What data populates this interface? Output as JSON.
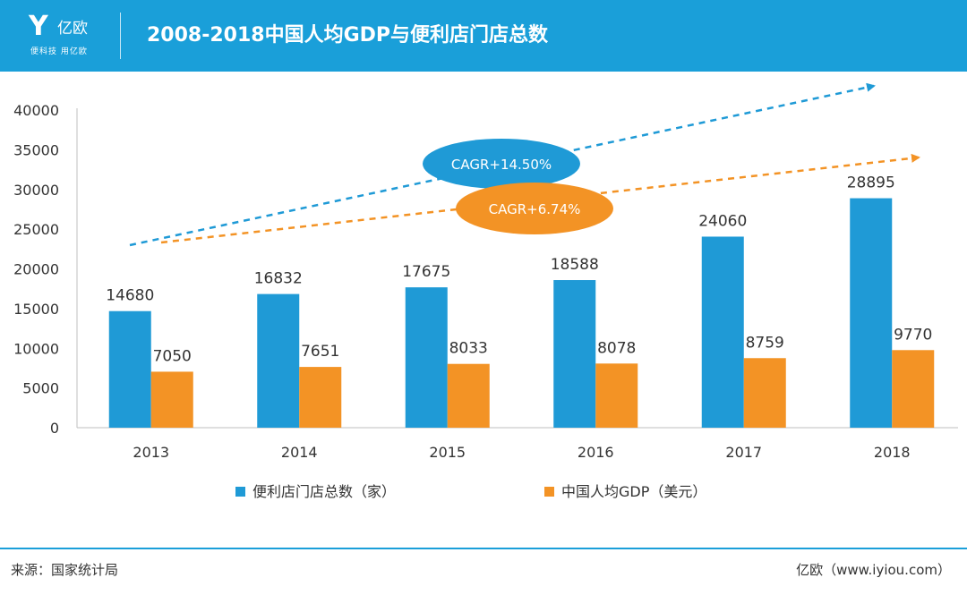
{
  "header": {
    "logo_glyph": "Y",
    "logo_name": "亿欧",
    "logo_slogan": "便科技 用亿欧",
    "title": "2008-2018中国人均GDP与便利店门店总数"
  },
  "colors": {
    "header_bg": "#1a9fd9",
    "series_stores": "#1f9ad6",
    "series_gdp": "#f39325"
  },
  "chart_data": {
    "type": "bar",
    "title": "2008-2018中国人均GDP与便利店门店总数",
    "categories": [
      "2013",
      "2014",
      "2015",
      "2016",
      "2017",
      "2018"
    ],
    "series": [
      {
        "name": "便利店门店总数（家）",
        "values": [
          14680,
          16832,
          17675,
          18588,
          24060,
          28895
        ]
      },
      {
        "name": "中国人均GDP（美元）",
        "values": [
          7050,
          7651,
          8033,
          8078,
          8759,
          9770
        ]
      }
    ],
    "ylim": [
      0,
      40000
    ],
    "yticks": [
      0,
      5000,
      10000,
      15000,
      20000,
      25000,
      30000,
      35000,
      40000
    ],
    "data_labels": true,
    "grid": false,
    "legend_position": "bottom",
    "annotations": [
      {
        "text": "CAGR+14.50%",
        "series": "便利店门店总数（家）",
        "style": "dashed-arrow"
      },
      {
        "text": "CAGR+6.74%",
        "series": "中国人均GDP（美元）",
        "style": "dashed-arrow"
      }
    ]
  },
  "footer": {
    "source": "来源：国家统计局",
    "credit": "亿欧（www.iyiou.com）"
  }
}
